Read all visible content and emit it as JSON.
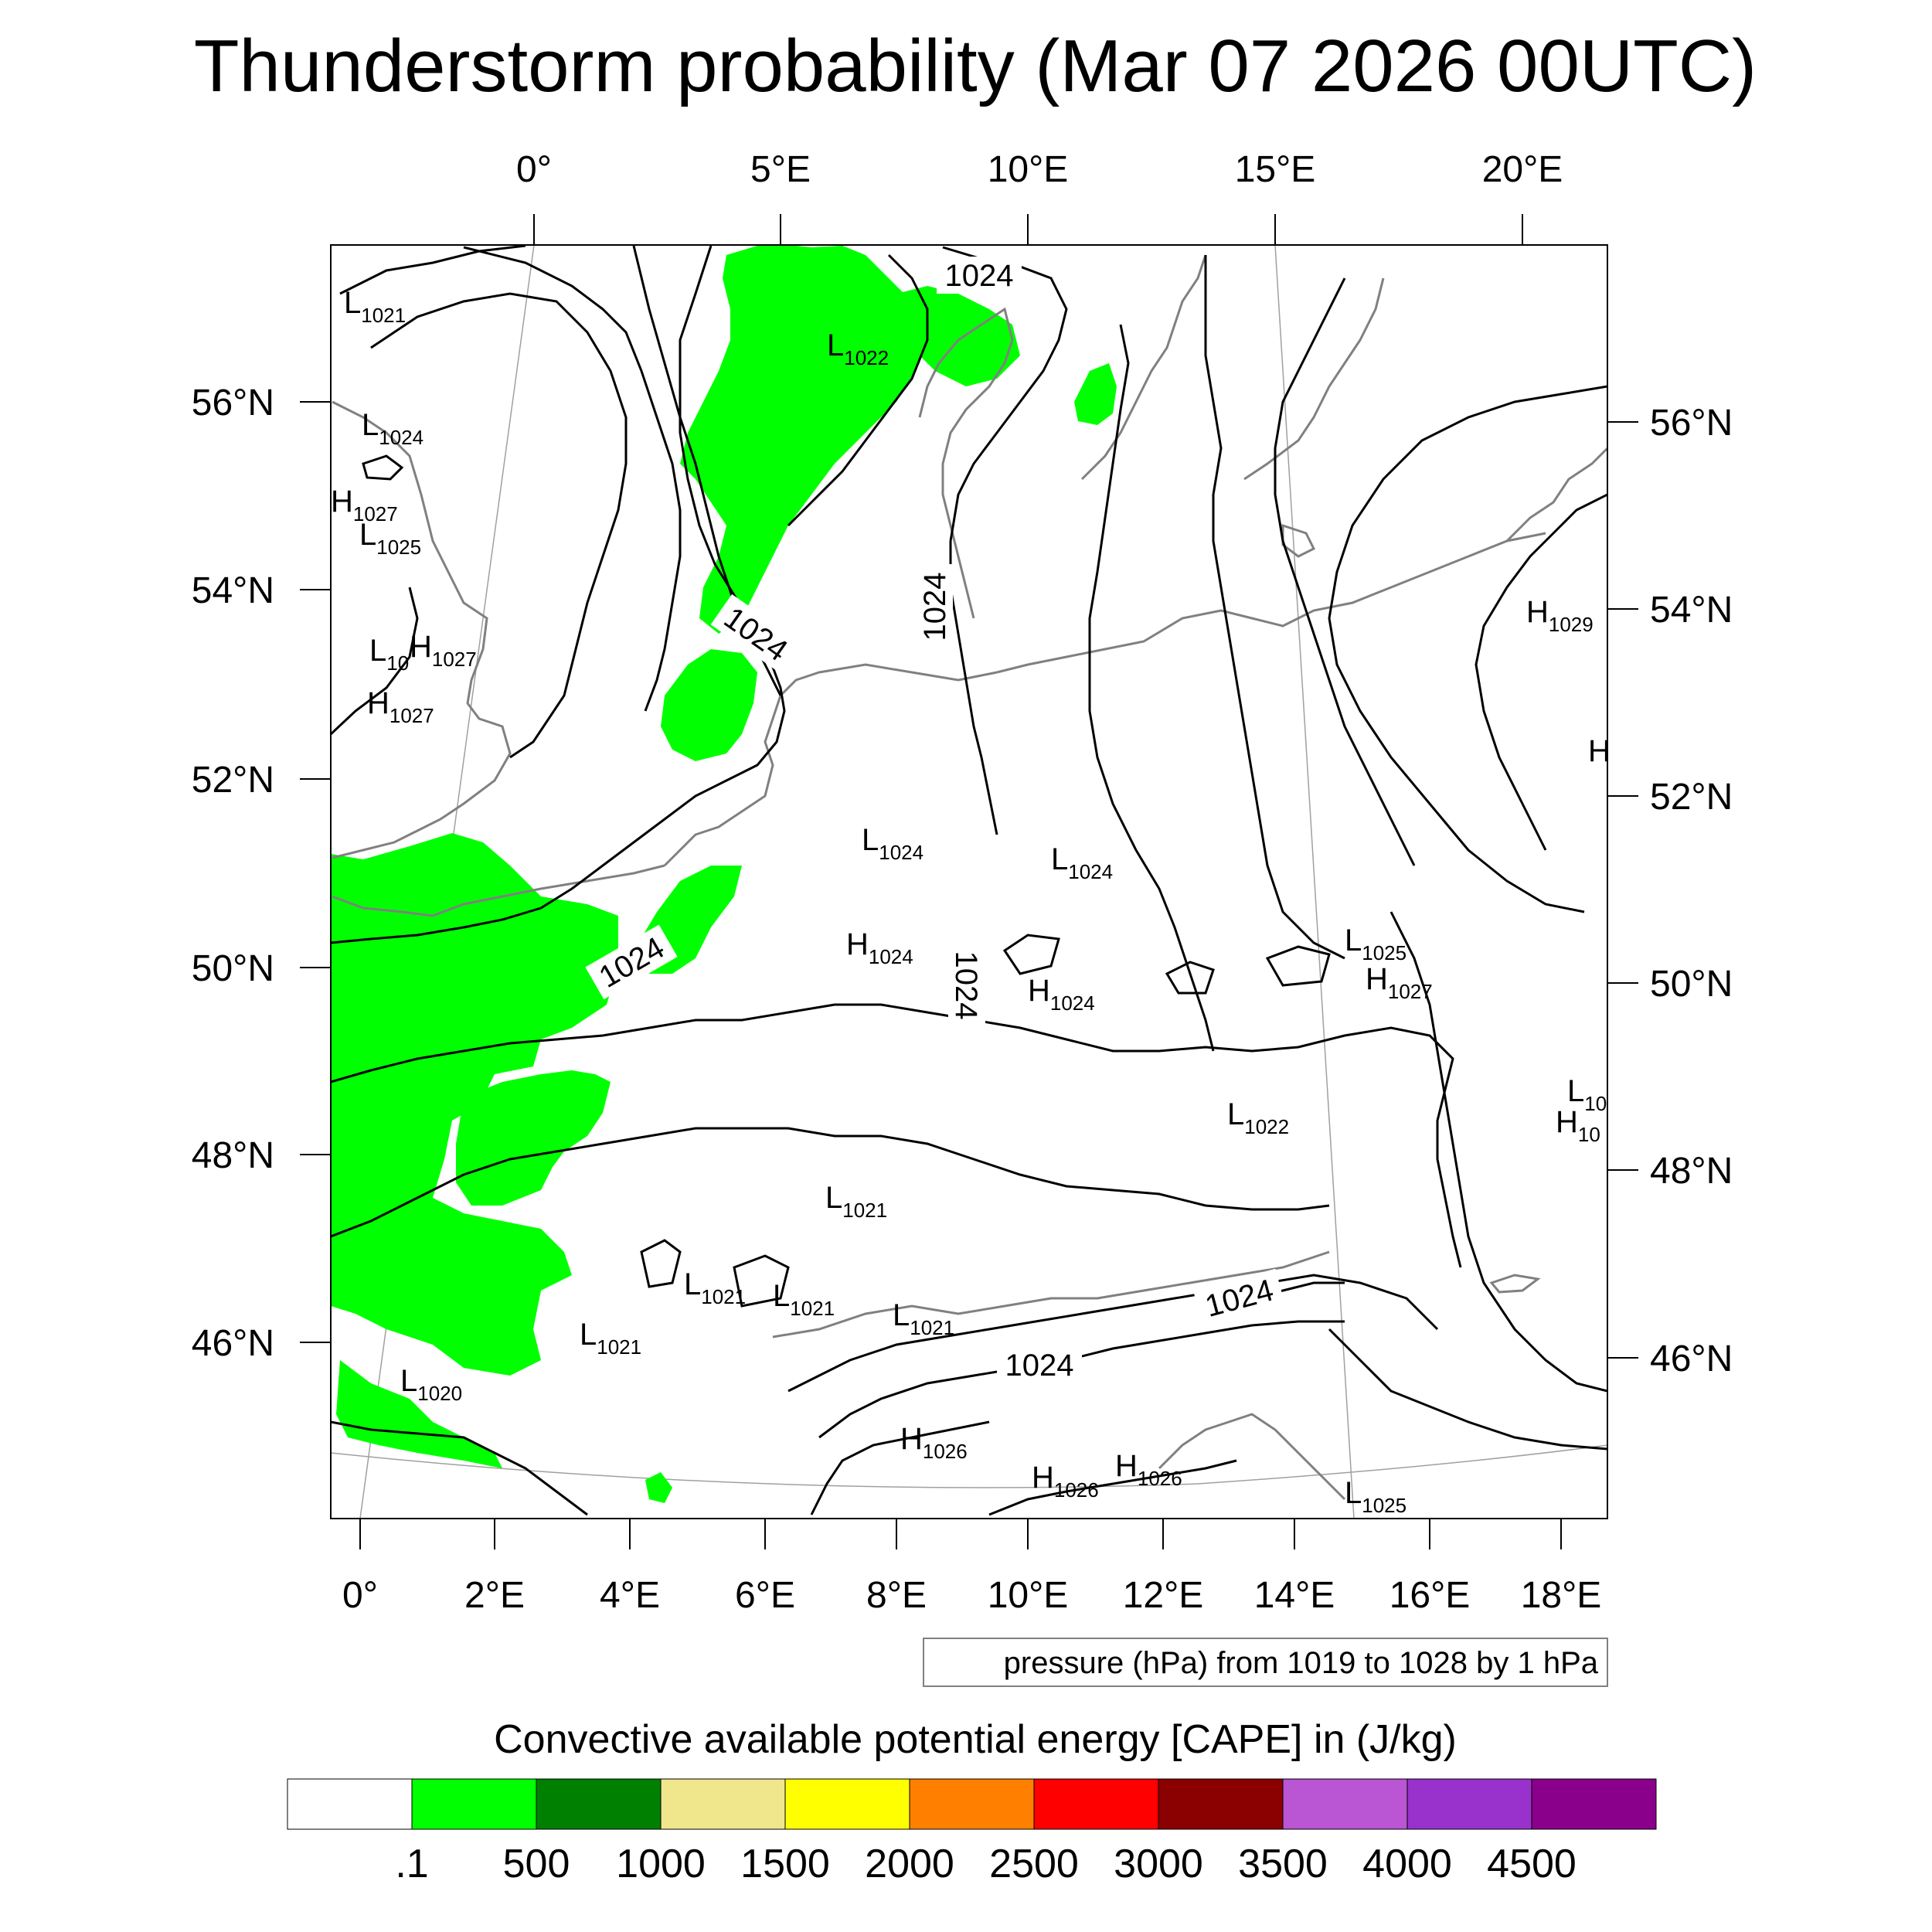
{
  "title": "Thunderstorm probability (Mar 07 2026 00UTC)",
  "top_lon_labels": [
    "0°",
    "5°E",
    "10°E",
    "15°E",
    "20°E"
  ],
  "bottom_lon_labels": [
    "0°",
    "2°E",
    "4°E",
    "6°E",
    "8°E",
    "10°E",
    "12°E",
    "14°E",
    "16°E",
    "18°E"
  ],
  "left_lat_labels": [
    "56°N",
    "54°N",
    "52°N",
    "50°N",
    "48°N",
    "46°N"
  ],
  "right_lat_labels": [
    "56°N",
    "54°N",
    "52°N",
    "50°N",
    "48°N",
    "46°N"
  ],
  "contour_labels": [
    "1024",
    "1024",
    "1024",
    "1024",
    "1024",
    "1024",
    "1024"
  ],
  "pressure_centers": [
    {
      "kind": "L",
      "value": "1021"
    },
    {
      "kind": "L",
      "value": "1022"
    },
    {
      "kind": "L",
      "value": "1024"
    },
    {
      "kind": "H",
      "value": "1027"
    },
    {
      "kind": "L",
      "value": "1025"
    },
    {
      "kind": "L",
      "value": "10"
    },
    {
      "kind": "H",
      "value": "1027"
    },
    {
      "kind": "H",
      "value": "1027"
    },
    {
      "kind": "H",
      "value": "1029"
    },
    {
      "kind": "H",
      "value": ""
    },
    {
      "kind": "L",
      "value": "1024"
    },
    {
      "kind": "L",
      "value": "1024"
    },
    {
      "kind": "H",
      "value": "1024"
    },
    {
      "kind": "H",
      "value": "1024"
    },
    {
      "kind": "L",
      "value": "1025"
    },
    {
      "kind": "H",
      "value": "1027"
    },
    {
      "kind": "L",
      "value": "10"
    },
    {
      "kind": "H",
      "value": "10"
    },
    {
      "kind": "L",
      "value": "1022"
    },
    {
      "kind": "L",
      "value": "1021"
    },
    {
      "kind": "L",
      "value": "1021"
    },
    {
      "kind": "L",
      "value": "1021"
    },
    {
      "kind": "L",
      "value": "1021"
    },
    {
      "kind": "L",
      "value": "1021"
    },
    {
      "kind": "L",
      "value": "1020"
    },
    {
      "kind": "H",
      "value": "1026"
    },
    {
      "kind": "H",
      "value": "1026"
    },
    {
      "kind": "H",
      "value": "1026"
    },
    {
      "kind": "L",
      "value": "1025"
    }
  ],
  "info_box": "pressure (hPa) from 1019 to 1028 by 1 hPa",
  "colorbar": {
    "title": "Convective available potential energy [CAPE] in (J/kg)",
    "colors": [
      "#ffffff",
      "#00ff00",
      "#008000",
      "#f0e68c",
      "#ffff00",
      "#ff8000",
      "#ff0000",
      "#8b0000",
      "#ba55d3",
      "#9932cc",
      "#8b008b"
    ],
    "ticks": [
      ".1",
      "500",
      "1000",
      "1500",
      "2000",
      "2500",
      "3000",
      "3500",
      "4000",
      "4500"
    ]
  },
  "colors": {
    "cape_fill": "#00ff00",
    "isobar": "#000000",
    "coastline": "#808080",
    "graticule": "#a0a0a0"
  }
}
